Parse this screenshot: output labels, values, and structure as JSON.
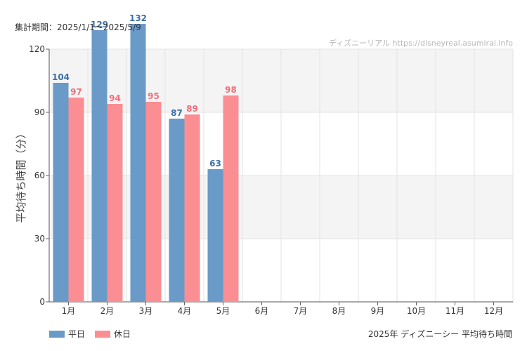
{
  "period_label": "集計期間：2025/1/1～2025/5/9",
  "watermark": "ディズニーリアル https://disneyreal.asumirai.info",
  "caption": "2025年 ディズニーシー 平均待ち時間",
  "colors": {
    "weekday": "#6a9ac8",
    "holiday": "#fa8e93",
    "weekday_label": "#3f6fa8",
    "holiday_label": "#f07078",
    "band": "#f4f4f4",
    "grid": "#e3e3e3"
  },
  "chart_data": {
    "type": "bar",
    "ylabel": "平均待ち時間（分）",
    "xlabel": "",
    "ylim": [
      0,
      120
    ],
    "yticks": [
      0,
      30,
      60,
      90,
      120
    ],
    "categories": [
      "1月",
      "2月",
      "3月",
      "4月",
      "5月",
      "6月",
      "7月",
      "8月",
      "9月",
      "10月",
      "11月",
      "12月"
    ],
    "series": [
      {
        "name": "平日",
        "values": [
          104,
          129,
          132,
          87,
          63,
          null,
          null,
          null,
          null,
          null,
          null,
          null
        ]
      },
      {
        "name": "休日",
        "values": [
          97,
          94,
          95,
          89,
          98,
          null,
          null,
          null,
          null,
          null,
          null,
          null
        ]
      }
    ],
    "legend": "bottom-left",
    "grid": true
  }
}
